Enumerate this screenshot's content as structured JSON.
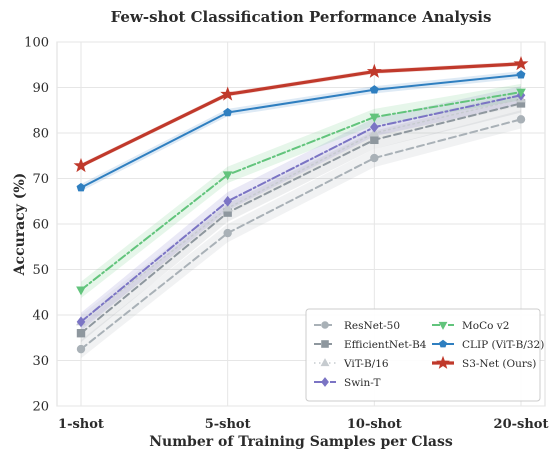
{
  "chart_data": {
    "type": "line",
    "title": "Few-shot Classification Performance Analysis",
    "xlabel": "Number of Training Samples per Class",
    "ylabel": "Accuracy (%)",
    "categories": [
      "1-shot",
      "5-shot",
      "10-shot",
      "20-shot"
    ],
    "ylim": [
      20,
      100
    ],
    "yticks": [
      20,
      30,
      40,
      50,
      60,
      70,
      80,
      90,
      100
    ],
    "grid": true,
    "legend_position": "bottom-right",
    "series": [
      {
        "name": "ResNet-50",
        "values": [
          32.5,
          58.0,
          74.5,
          83.0
        ],
        "color": "#a9b1b7",
        "dash": "dashed",
        "marker": "circle",
        "band": 2.0,
        "width": 2
      },
      {
        "name": "EfficientNet-B4",
        "values": [
          36.0,
          62.5,
          78.5,
          86.5
        ],
        "color": "#8e979e",
        "dash": "dashed",
        "marker": "square",
        "band": 2.0,
        "width": 2
      },
      {
        "name": "ViT-B/16",
        "values": [
          38.5,
          63.5,
          80.0,
          87.5
        ],
        "color": "#c6cbcf",
        "dash": "dotted",
        "marker": "triangle-up",
        "band": 1.5,
        "width": 1.5
      },
      {
        "name": "Swin-T",
        "values": [
          38.5,
          65.0,
          81.3,
          88.3
        ],
        "color": "#7b74c4",
        "dash": "dashdot",
        "marker": "diamond",
        "band": 2.0,
        "width": 2
      },
      {
        "name": "MoCo v2",
        "values": [
          45.5,
          70.8,
          83.5,
          89.0
        ],
        "color": "#62c47c",
        "dash": "dashdot",
        "marker": "triangle-down",
        "band": 1.8,
        "width": 2
      },
      {
        "name": "CLIP (ViT-B/32)",
        "values": [
          68.0,
          84.5,
          89.5,
          92.8
        ],
        "color": "#2f7fc0",
        "dash": "solid",
        "marker": "pentagon",
        "band": 0.8,
        "width": 2
      },
      {
        "name": "S3-Net (Ours)",
        "values": [
          72.8,
          88.5,
          93.5,
          95.2
        ],
        "color": "#c0392b",
        "dash": "solid",
        "marker": "star",
        "band": 0.5,
        "width": 3.2
      }
    ]
  }
}
